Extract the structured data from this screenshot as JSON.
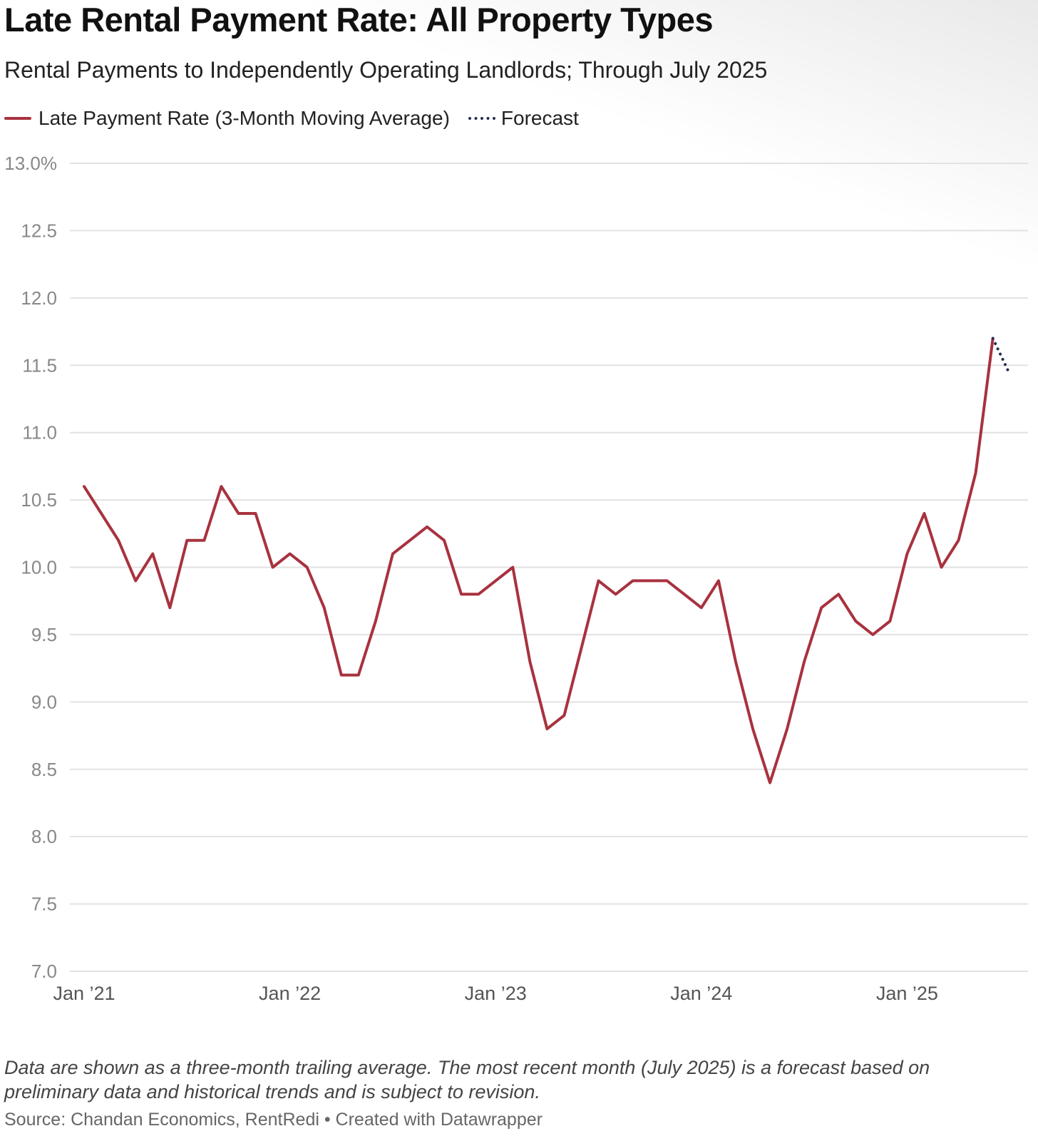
{
  "title": "Late Rental Payment Rate: All Property Types",
  "subtitle": "Rental Payments to Independently Operating Landlords; Through July 2025",
  "legend": {
    "actual": "Late Payment Rate (3-Month Moving Average)",
    "forecast": "Forecast"
  },
  "notes": "Data are shown as a three-month trailing average. The most recent month (July 2025) is a forecast based on preliminary data and historical trends and is subject to revision.",
  "source": "Source: Chandan Economics, RentRedi • Created with Datawrapper",
  "colors": {
    "actual": "#a8323e",
    "forecast": "#262b52",
    "grid": "#e2e2e2",
    "axis_text": "#888888"
  },
  "chart_data": {
    "type": "line",
    "ylim": [
      7.0,
      13.0
    ],
    "y_ticks": [
      "13.0%",
      "12.5",
      "12.0",
      "11.5",
      "11.0",
      "10.5",
      "10.0",
      "9.5",
      "9.0",
      "8.5",
      "8.0",
      "7.5",
      "7.0"
    ],
    "y_tick_values": [
      13.0,
      12.5,
      12.0,
      11.5,
      11.0,
      10.5,
      10.0,
      9.5,
      9.0,
      8.5,
      8.0,
      7.5,
      7.0
    ],
    "x_ticks": [
      "Jan ’21",
      "Jan ’22",
      "Jan ’23",
      "Jan ’24",
      "Jan ’25"
    ],
    "x_tick_values": [
      "2021-01",
      "2022-01",
      "2023-01",
      "2024-01",
      "2025-01"
    ],
    "grid": true,
    "series": [
      {
        "name": "Late Payment Rate (3-Month Moving Average)",
        "style": "solid",
        "x": [
          "2021-01",
          "2021-02",
          "2021-03",
          "2021-04",
          "2021-05",
          "2021-06",
          "2021-07",
          "2021-08",
          "2021-09",
          "2021-10",
          "2021-11",
          "2021-12",
          "2022-01",
          "2022-02",
          "2022-03",
          "2022-04",
          "2022-05",
          "2022-06",
          "2022-07",
          "2022-08",
          "2022-09",
          "2022-10",
          "2022-11",
          "2022-12",
          "2023-01",
          "2023-02",
          "2023-03",
          "2023-04",
          "2023-05",
          "2023-06",
          "2023-07",
          "2023-08",
          "2023-09",
          "2023-10",
          "2023-11",
          "2023-12",
          "2024-01",
          "2024-02",
          "2024-03",
          "2024-04",
          "2024-05",
          "2024-06",
          "2024-07",
          "2024-08",
          "2024-09",
          "2024-10",
          "2024-11",
          "2024-12",
          "2025-01",
          "2025-02",
          "2025-03",
          "2025-04",
          "2025-05",
          "2025-06"
        ],
        "values": [
          10.6,
          10.4,
          10.2,
          9.9,
          10.1,
          9.7,
          10.2,
          10.2,
          10.6,
          10.4,
          10.4,
          10.0,
          10.1,
          10.0,
          9.7,
          9.2,
          9.2,
          9.6,
          10.1,
          10.2,
          10.3,
          10.2,
          9.8,
          9.8,
          9.9,
          10.0,
          9.3,
          8.8,
          8.9,
          9.4,
          9.9,
          9.8,
          9.9,
          9.9,
          9.9,
          9.8,
          9.7,
          9.9,
          9.3,
          8.8,
          8.4,
          8.8,
          9.3,
          9.7,
          9.8,
          9.6,
          9.5,
          9.6,
          10.1,
          10.4,
          10.0,
          10.2,
          10.7,
          11.7
        ]
      },
      {
        "name": "Forecast",
        "style": "dotted",
        "x": [
          "2025-06",
          "2025-07"
        ],
        "values": [
          11.7,
          11.43
        ]
      }
    ]
  }
}
